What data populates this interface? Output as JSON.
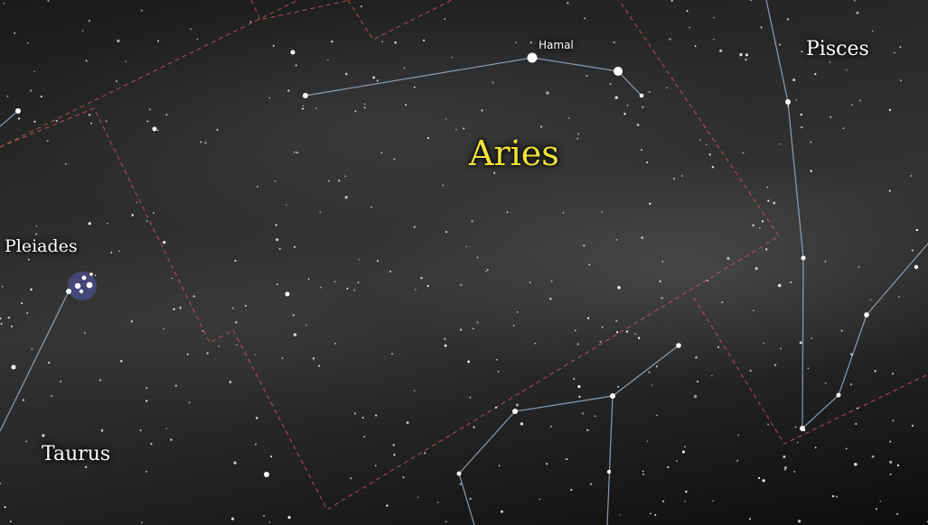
{
  "labels": {
    "aries": "Aries",
    "pisces": "Pisces",
    "taurus": "Taurus",
    "pleiades": "Pleiades",
    "hamal": "Hamal"
  },
  "colors": {
    "constellation_label_highlight": "#f2e23a",
    "label_default": "#ffffff",
    "constellation_lines": "#9fb3c6",
    "boundary_lines": "#c65a5a",
    "sky_background": "#2b2b2b"
  }
}
